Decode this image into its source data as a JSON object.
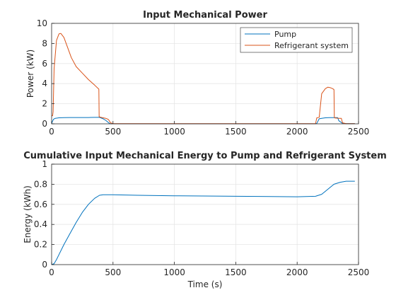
{
  "chart_data": [
    {
      "type": "line",
      "title": "Input Mechanical Power",
      "xlabel": "",
      "ylabel": "Power (kW)",
      "xlim": [
        0,
        2500
      ],
      "ylim": [
        0,
        10
      ],
      "xticks": [
        0,
        500,
        1000,
        1500,
        2000,
        2500
      ],
      "yticks": [
        0,
        2,
        4,
        6,
        8,
        10
      ],
      "grid": true,
      "legend_position": "top-right",
      "series": [
        {
          "name": "Pump",
          "color": "#0072BD",
          "x": [
            0,
            5,
            15,
            30,
            60,
            100,
            150,
            200,
            250,
            300,
            350,
            390,
            400,
            420,
            440,
            460,
            470,
            480,
            500,
            1000,
            1500,
            2000,
            2100,
            2150,
            2160,
            2180,
            2200,
            2230,
            2260,
            2300,
            2330,
            2340,
            2370,
            2400,
            2470
          ],
          "y": [
            0,
            0.2,
            0.45,
            0.55,
            0.6,
            0.62,
            0.63,
            0.63,
            0.63,
            0.63,
            0.64,
            0.64,
            0.6,
            0.5,
            0.35,
            0.15,
            0.05,
            0,
            0,
            0,
            0,
            0,
            0,
            0,
            0.05,
            0.5,
            0.55,
            0.6,
            0.62,
            0.62,
            0.62,
            0.3,
            0.05,
            0.02,
            0.02
          ]
        },
        {
          "name": "Refrigerant system",
          "color": "#D95319",
          "x": [
            0,
            8,
            12,
            20,
            40,
            60,
            75,
            100,
            130,
            160,
            200,
            250,
            300,
            350,
            385,
            387,
            390,
            400,
            420,
            440,
            460,
            470,
            480,
            500,
            1000,
            1500,
            2000,
            2100,
            2150,
            2160,
            2170,
            2180,
            2200,
            2230,
            2250,
            2270,
            2290,
            2300,
            2303,
            2310,
            2340,
            2360,
            2370,
            2400,
            2470
          ],
          "y": [
            0.8,
            0.8,
            1.2,
            5.5,
            8.3,
            8.95,
            9.0,
            8.6,
            7.6,
            6.6,
            5.7,
            5.05,
            4.4,
            3.85,
            3.45,
            0.7,
            0.7,
            0.65,
            0.6,
            0.55,
            0.45,
            0.3,
            0.1,
            0.02,
            0.02,
            0.02,
            0.02,
            0.02,
            0.02,
            0.6,
            0.62,
            0.65,
            3.0,
            3.5,
            3.65,
            3.6,
            3.5,
            3.4,
            0.6,
            0.58,
            0.55,
            0.55,
            0.1,
            0.02,
            0.02
          ]
        }
      ]
    },
    {
      "type": "line",
      "title": "Cumulative Input Mechanical Energy to Pump and Refrigerant System",
      "xlabel": "Time (s)",
      "ylabel": "Energy (kWh)",
      "xlim": [
        0,
        2500
      ],
      "ylim": [
        0,
        1
      ],
      "xticks": [
        0,
        500,
        1000,
        1500,
        2000,
        2500
      ],
      "yticks": [
        0,
        0.2,
        0.4,
        0.6,
        0.8,
        1
      ],
      "grid": true,
      "series": [
        {
          "color": "#0072BD",
          "x": [
            0,
            20,
            40,
            60,
            100,
            150,
            200,
            250,
            300,
            350,
            390,
            420,
            500,
            700,
            1000,
            1500,
            2000,
            2150,
            2200,
            2250,
            2300,
            2350,
            2400,
            2470
          ],
          "y": [
            0,
            0.01,
            0.05,
            0.1,
            0.2,
            0.31,
            0.42,
            0.52,
            0.6,
            0.66,
            0.69,
            0.695,
            0.695,
            0.69,
            0.685,
            0.68,
            0.675,
            0.68,
            0.7,
            0.75,
            0.8,
            0.82,
            0.83,
            0.83
          ]
        }
      ]
    }
  ]
}
